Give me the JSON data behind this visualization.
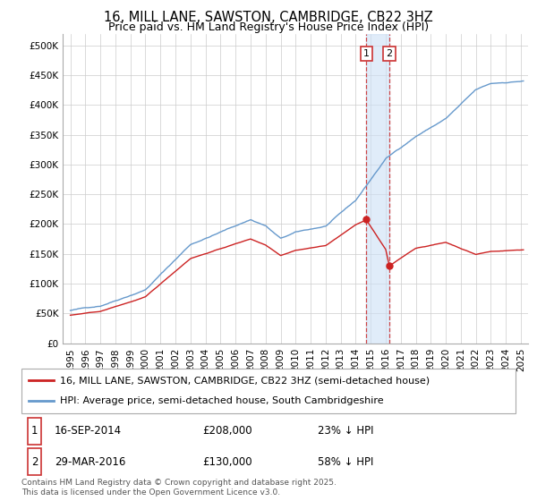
{
  "title": "16, MILL LANE, SAWSTON, CAMBRIDGE, CB22 3HZ",
  "subtitle": "Price paid vs. HM Land Registry's House Price Index (HPI)",
  "background_color": "#ffffff",
  "plot_bg_color": "#ffffff",
  "grid_color": "#cccccc",
  "ylim": [
    0,
    520000
  ],
  "yticks": [
    0,
    50000,
    100000,
    150000,
    200000,
    250000,
    300000,
    350000,
    400000,
    450000,
    500000
  ],
  "ytick_labels": [
    "£0",
    "£50K",
    "£100K",
    "£150K",
    "£200K",
    "£250K",
    "£300K",
    "£350K",
    "£400K",
    "£450K",
    "£500K"
  ],
  "xlim_start": 1994.5,
  "xlim_end": 2025.5,
  "hpi_color": "#6699cc",
  "price_color": "#cc2222",
  "transaction1_date": 2014.71,
  "transaction1_price": 208000,
  "transaction1_label": "1",
  "transaction2_date": 2016.24,
  "transaction2_price": 130000,
  "transaction2_label": "2",
  "transaction_shade_color": "#cce0f5",
  "transaction_line_color": "#cc3333",
  "legend_label_red": "16, MILL LANE, SAWSTON, CAMBRIDGE, CB22 3HZ (semi-detached house)",
  "legend_label_blue": "HPI: Average price, semi-detached house, South Cambridgeshire",
  "footer": "Contains HM Land Registry data © Crown copyright and database right 2025.\nThis data is licensed under the Open Government Licence v3.0.",
  "title_fontsize": 10.5,
  "subtitle_fontsize": 9,
  "tick_fontsize": 7.5,
  "legend_fontsize": 8,
  "annotation_fontsize": 8,
  "footer_fontsize": 6.5
}
